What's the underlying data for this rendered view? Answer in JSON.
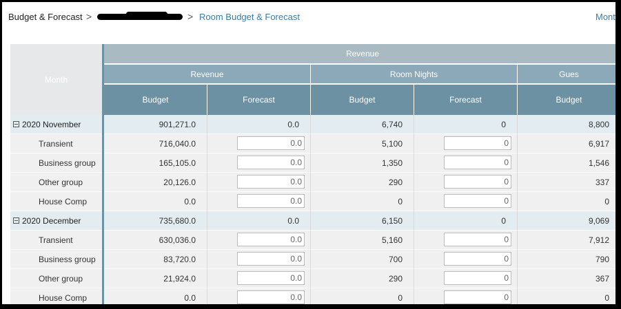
{
  "breadcrumb": {
    "root": "Budget & Forecast",
    "sep": ">",
    "current": "Room Budget & Forecast"
  },
  "mode_label": "Mont",
  "header": {
    "month": "Month",
    "top_group": "Revenue",
    "groups": [
      "Revenue",
      "Room Nights",
      "Gues"
    ],
    "sub": [
      "Budget",
      "Forecast",
      "Budget",
      "Forecast",
      "Budget"
    ]
  },
  "rows": [
    {
      "label": "2020 November",
      "group": true,
      "rev_budget": "901,271.0",
      "rev_forecast": "0.0",
      "rn_budget": "6,740",
      "rn_forecast": "0",
      "guest_budget": "8,800"
    },
    {
      "label": "Transient",
      "group": false,
      "rev_budget": "716,040.0",
      "rev_forecast": "0.0",
      "rn_budget": "5,100",
      "rn_forecast": "0",
      "guest_budget": "6,917"
    },
    {
      "label": "Business group",
      "group": false,
      "rev_budget": "165,105.0",
      "rev_forecast": "0.0",
      "rn_budget": "1,350",
      "rn_forecast": "0",
      "guest_budget": "1,546"
    },
    {
      "label": "Other group",
      "group": false,
      "rev_budget": "20,126.0",
      "rev_forecast": "0.0",
      "rn_budget": "290",
      "rn_forecast": "0",
      "guest_budget": "337"
    },
    {
      "label": "House Comp",
      "group": false,
      "rev_budget": "0.0",
      "rev_forecast": "0.0",
      "rn_budget": "0",
      "rn_forecast": "0",
      "guest_budget": "0"
    },
    {
      "label": "2020 December",
      "group": true,
      "rev_budget": "735,680.0",
      "rev_forecast": "0.0",
      "rn_budget": "6,150",
      "rn_forecast": "0",
      "guest_budget": "9,069"
    },
    {
      "label": "Transient",
      "group": false,
      "rev_budget": "630,036.0",
      "rev_forecast": "0.0",
      "rn_budget": "5,160",
      "rn_forecast": "0",
      "guest_budget": "7,912"
    },
    {
      "label": "Business group",
      "group": false,
      "rev_budget": "83,720.0",
      "rev_forecast": "0.0",
      "rn_budget": "700",
      "rn_forecast": "0",
      "guest_budget": "790"
    },
    {
      "label": "Other group",
      "group": false,
      "rev_budget": "21,924.0",
      "rev_forecast": "0.0",
      "rn_budget": "290",
      "rn_forecast": "0",
      "guest_budget": "367"
    },
    {
      "label": "House Comp",
      "group": false,
      "rev_budget": "0.0",
      "rev_forecast": "0.0",
      "rn_budget": "0",
      "rn_forecast": "0",
      "guest_budget": "0"
    }
  ]
}
